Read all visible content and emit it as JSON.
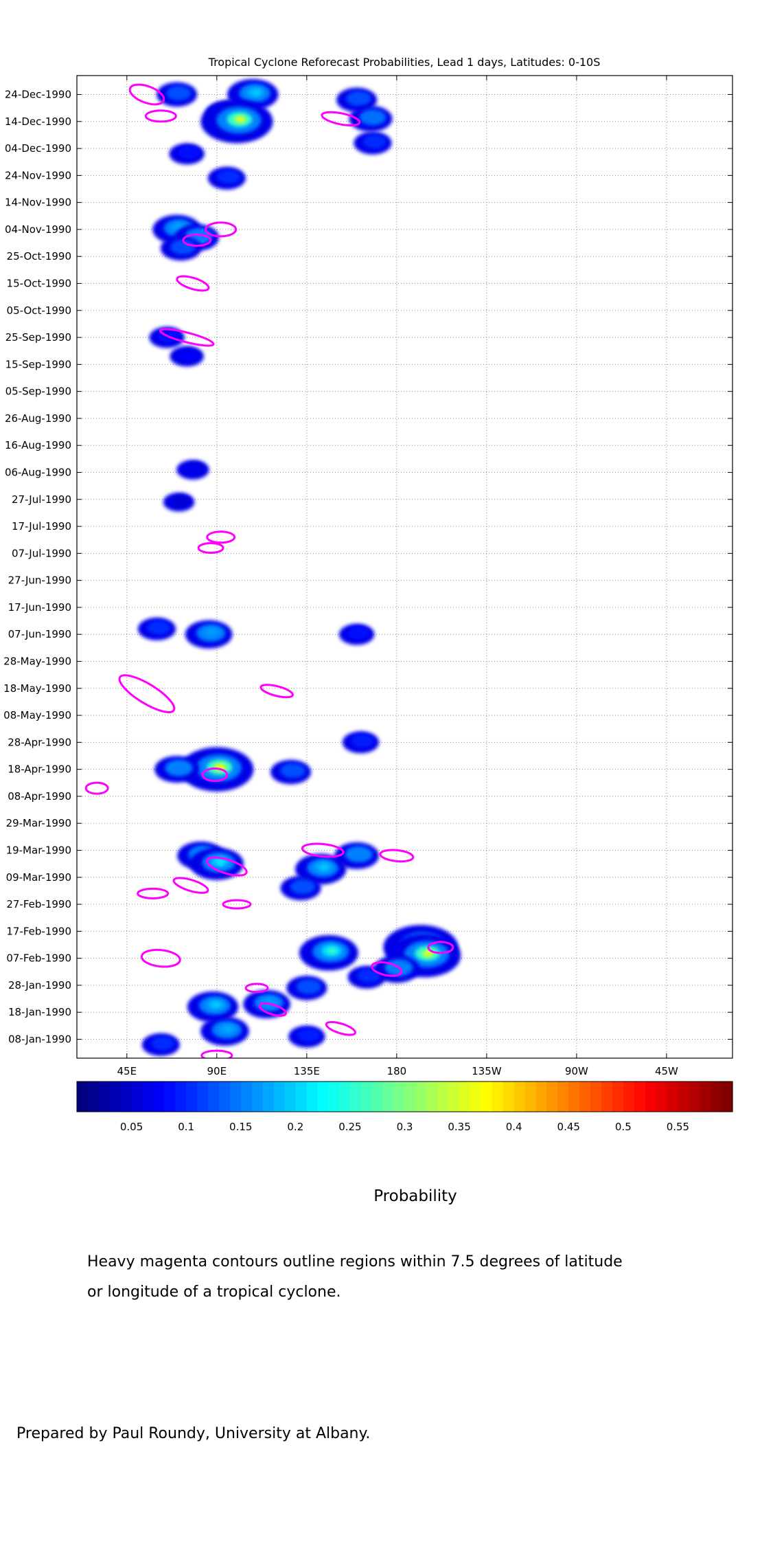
{
  "chart_data": {
    "type": "heatmap",
    "title": "Tropical Cyclone Reforecast Probabilities, Lead 1 days, Latitudes: 0-10S",
    "x_ticks": [
      "45E",
      "90E",
      "135E",
      "180",
      "135W",
      "90W",
      "45W"
    ],
    "x_tick_values": [
      45,
      90,
      135,
      180,
      225,
      270,
      315
    ],
    "xlim": [
      20,
      348
    ],
    "y_ticks": [
      "24-Dec-1990",
      "14-Dec-1990",
      "04-Dec-1990",
      "24-Nov-1990",
      "14-Nov-1990",
      "04-Nov-1990",
      "25-Oct-1990",
      "15-Oct-1990",
      "05-Oct-1990",
      "25-Sep-1990",
      "15-Sep-1990",
      "05-Sep-1990",
      "26-Aug-1990",
      "16-Aug-1990",
      "06-Aug-1990",
      "27-Jul-1990",
      "17-Jul-1990",
      "07-Jul-1990",
      "27-Jun-1990",
      "17-Jun-1990",
      "07-Jun-1990",
      "28-May-1990",
      "18-May-1990",
      "08-May-1990",
      "28-Apr-1990",
      "18-Apr-1990",
      "08-Apr-1990",
      "29-Mar-1990",
      "19-Mar-1990",
      "09-Mar-1990",
      "27-Feb-1990",
      "17-Feb-1990",
      "07-Feb-1990",
      "28-Jan-1990",
      "18-Jan-1990",
      "08-Jan-1990"
    ],
    "ylim": [
      "01-Jan-1990",
      "31-Dec-1990"
    ],
    "grid": true,
    "colorbar": {
      "label": "Probability",
      "ticks": [
        "0.05",
        "0.1",
        "0.15",
        "0.2",
        "0.25",
        "0.3",
        "0.35",
        "0.4",
        "0.45",
        "0.5",
        "0.55"
      ],
      "tick_values": [
        0.05,
        0.1,
        0.15,
        0.2,
        0.25,
        0.3,
        0.35,
        0.4,
        0.45,
        0.5,
        0.55
      ],
      "range": [
        0,
        0.6
      ]
    },
    "colors": {
      "contour": "#ff00ff",
      "grid": "#8a8a8a"
    },
    "blobs": [
      {
        "date": "24-Dec-1990",
        "lon": 70,
        "p": 0.12
      },
      {
        "date": "24-Dec-1990",
        "lon": 108,
        "p": 0.2
      },
      {
        "date": "17-Dec-1990",
        "lon": 95,
        "p": 0.13
      },
      {
        "date": "14-Dec-1990",
        "lon": 100,
        "p": 0.36
      },
      {
        "date": "22-Dec-1990",
        "lon": 160,
        "p": 0.12
      },
      {
        "date": "15-Dec-1990",
        "lon": 167,
        "p": 0.14
      },
      {
        "date": "06-Dec-1990",
        "lon": 168,
        "p": 0.1
      },
      {
        "date": "02-Dec-1990",
        "lon": 75,
        "p": 0.08
      },
      {
        "date": "23-Nov-1990",
        "lon": 95,
        "p": 0.1
      },
      {
        "date": "04-Nov-1990",
        "lon": 70,
        "p": 0.18
      },
      {
        "date": "01-Nov-1990",
        "lon": 80,
        "p": 0.15
      },
      {
        "date": "28-Oct-1990",
        "lon": 72,
        "p": 0.12
      },
      {
        "date": "25-Sep-1990",
        "lon": 65,
        "p": 0.08
      },
      {
        "date": "18-Sep-1990",
        "lon": 75,
        "p": 0.07
      },
      {
        "date": "07-Aug-1990",
        "lon": 78,
        "p": 0.06
      },
      {
        "date": "26-Jul-1990",
        "lon": 71,
        "p": 0.05
      },
      {
        "date": "07-Jun-1990",
        "lon": 86,
        "p": 0.17
      },
      {
        "date": "09-Jun-1990",
        "lon": 60,
        "p": 0.1
      },
      {
        "date": "07-Jun-1990",
        "lon": 160,
        "p": 0.08
      },
      {
        "date": "18-Apr-1990",
        "lon": 90,
        "p": 0.37
      },
      {
        "date": "18-Apr-1990",
        "lon": 70,
        "p": 0.15
      },
      {
        "date": "17-Apr-1990",
        "lon": 127,
        "p": 0.12
      },
      {
        "date": "28-Apr-1990",
        "lon": 162,
        "p": 0.09
      },
      {
        "date": "17-Mar-1990",
        "lon": 82,
        "p": 0.17
      },
      {
        "date": "14-Mar-1990",
        "lon": 90,
        "p": 0.22
      },
      {
        "date": "12-Mar-1990",
        "lon": 142,
        "p": 0.2
      },
      {
        "date": "17-Mar-1990",
        "lon": 160,
        "p": 0.15
      },
      {
        "date": "05-Mar-1990",
        "lon": 132,
        "p": 0.12
      },
      {
        "date": "09-Feb-1990",
        "lon": 146,
        "p": 0.26
      },
      {
        "date": "11-Feb-1990",
        "lon": 192,
        "p": 0.38
      },
      {
        "date": "08-Feb-1990",
        "lon": 194,
        "p": 0.36
      },
      {
        "date": "03-Feb-1990",
        "lon": 180,
        "p": 0.16
      },
      {
        "date": "31-Jan-1990",
        "lon": 165,
        "p": 0.1
      },
      {
        "date": "20-Jan-1990",
        "lon": 88,
        "p": 0.2
      },
      {
        "date": "11-Jan-1990",
        "lon": 94,
        "p": 0.18
      },
      {
        "date": "21-Jan-1990",
        "lon": 115,
        "p": 0.17
      },
      {
        "date": "27-Jan-1990",
        "lon": 135,
        "p": 0.12
      },
      {
        "date": "09-Jan-1990",
        "lon": 135,
        "p": 0.09
      },
      {
        "date": "06-Jan-1990",
        "lon": 62,
        "p": 0.1
      }
    ]
  },
  "notes": {
    "line1": "Heavy magenta contours outline regions within 7.5 degrees of latitude",
    "line2": "or longitude of a tropical cyclone."
  },
  "credit": "Prepared by Paul Roundy, University at Albany."
}
